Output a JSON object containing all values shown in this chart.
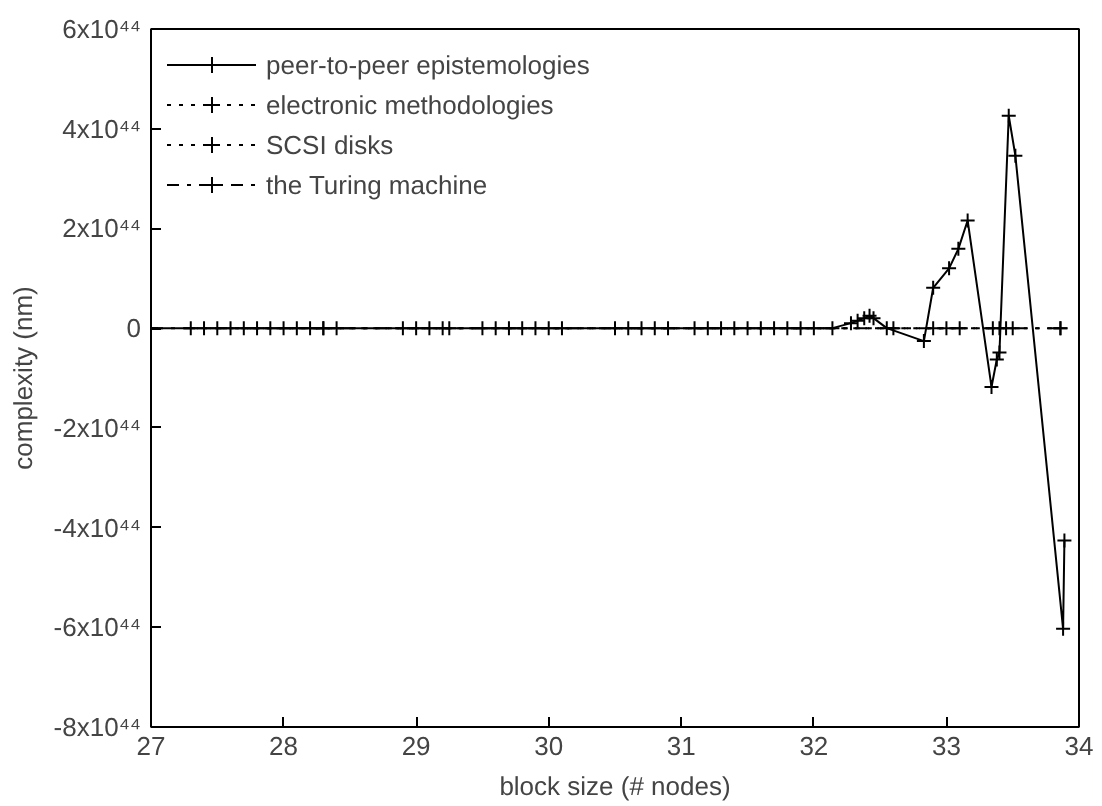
{
  "chart_data": {
    "type": "line",
    "xlabel": "block size (# nodes)",
    "ylabel": "complexity (nm)",
    "xlim": [
      27,
      34
    ],
    "xticks": [
      27,
      28,
      29,
      30,
      31,
      32,
      33,
      34
    ],
    "ylim": [
      -8e+44,
      6e+44
    ],
    "yticks": [
      {
        "value": -8e+44,
        "label": "-8x10⁴⁴"
      },
      {
        "value": -6e+44,
        "label": "-6x10⁴⁴"
      },
      {
        "value": -4e+44,
        "label": "-4x10⁴⁴"
      },
      {
        "value": -2e+44,
        "label": "-2x10⁴⁴"
      },
      0,
      {
        "value": 2e+44,
        "label": "2x10⁴⁴"
      },
      {
        "value": 4e+44,
        "label": "4x10⁴⁴"
      },
      {
        "value": 6e+44,
        "label": "6x10⁴⁴"
      }
    ],
    "grid": false,
    "legend": "top left",
    "marker": "cross",
    "series": [
      {
        "name": "peer-to-peer epistemologies",
        "color": "#000000",
        "line_style": "solid",
        "x": [
          27,
          27.4,
          27.6,
          28.0,
          28.3,
          28.9,
          29.2,
          29.6,
          30.0,
          30.7,
          31.3,
          31.5,
          31.8,
          32.14,
          32.28,
          32.33,
          32.38,
          32.42,
          32.45,
          32.55,
          32.83,
          32.9,
          33.02,
          33.09,
          33.16,
          33.34,
          33.38,
          33.4,
          33.47,
          33.52,
          33.88,
          33.89
        ],
        "values": [
          0,
          0,
          0,
          0,
          0,
          0,
          0,
          0,
          0,
          0,
          0,
          0,
          0,
          0,
          1e+43,
          1.5e+43,
          2e+43,
          2.5e+43,
          2e+43,
          0,
          -2.6e+43,
          8.1e+43,
          1.2e+44,
          1.59e+44,
          2.16e+44,
          -1.18e+44,
          -6.3e+43,
          -4.9e+43,
          4.26e+44,
          3.46e+44,
          -6.03e+44,
          -4.26e+44
        ]
      },
      {
        "name": "electronic methodologies",
        "color": "#000000",
        "line_style": "dotted",
        "x": [
          27.5,
          27.8,
          28.2,
          28.4,
          29.0,
          29.5,
          29.8,
          30.6,
          30.9,
          31.2,
          31.6,
          31.9,
          32.9,
          33.0,
          33.1,
          33.4
        ],
        "values": [
          0,
          0,
          0,
          0,
          0,
          0,
          0,
          0,
          0,
          0,
          0,
          0,
          0,
          0,
          0,
          0
        ]
      },
      {
        "name": "SCSI disks",
        "color": "#000000",
        "line_style": "dotted",
        "x": [
          27.7,
          27.9,
          28.3,
          29.1,
          29.7,
          30.1,
          30.8,
          31.4,
          31.7,
          33.35,
          33.45,
          33.86
        ],
        "values": [
          0,
          0,
          0,
          0,
          0,
          0,
          0,
          0,
          0,
          0,
          0,
          0
        ]
      },
      {
        "name": "the Turing machine",
        "color": "#000000",
        "line_style": "dashdot",
        "x": [
          27.0,
          27.3,
          28.1,
          29.25,
          29.9,
          30.5,
          31.1,
          32.0,
          32.6,
          33.5,
          33.86
        ],
        "values": [
          0,
          0,
          0,
          0,
          0,
          0,
          0,
          0,
          0,
          0,
          0
        ]
      }
    ]
  }
}
